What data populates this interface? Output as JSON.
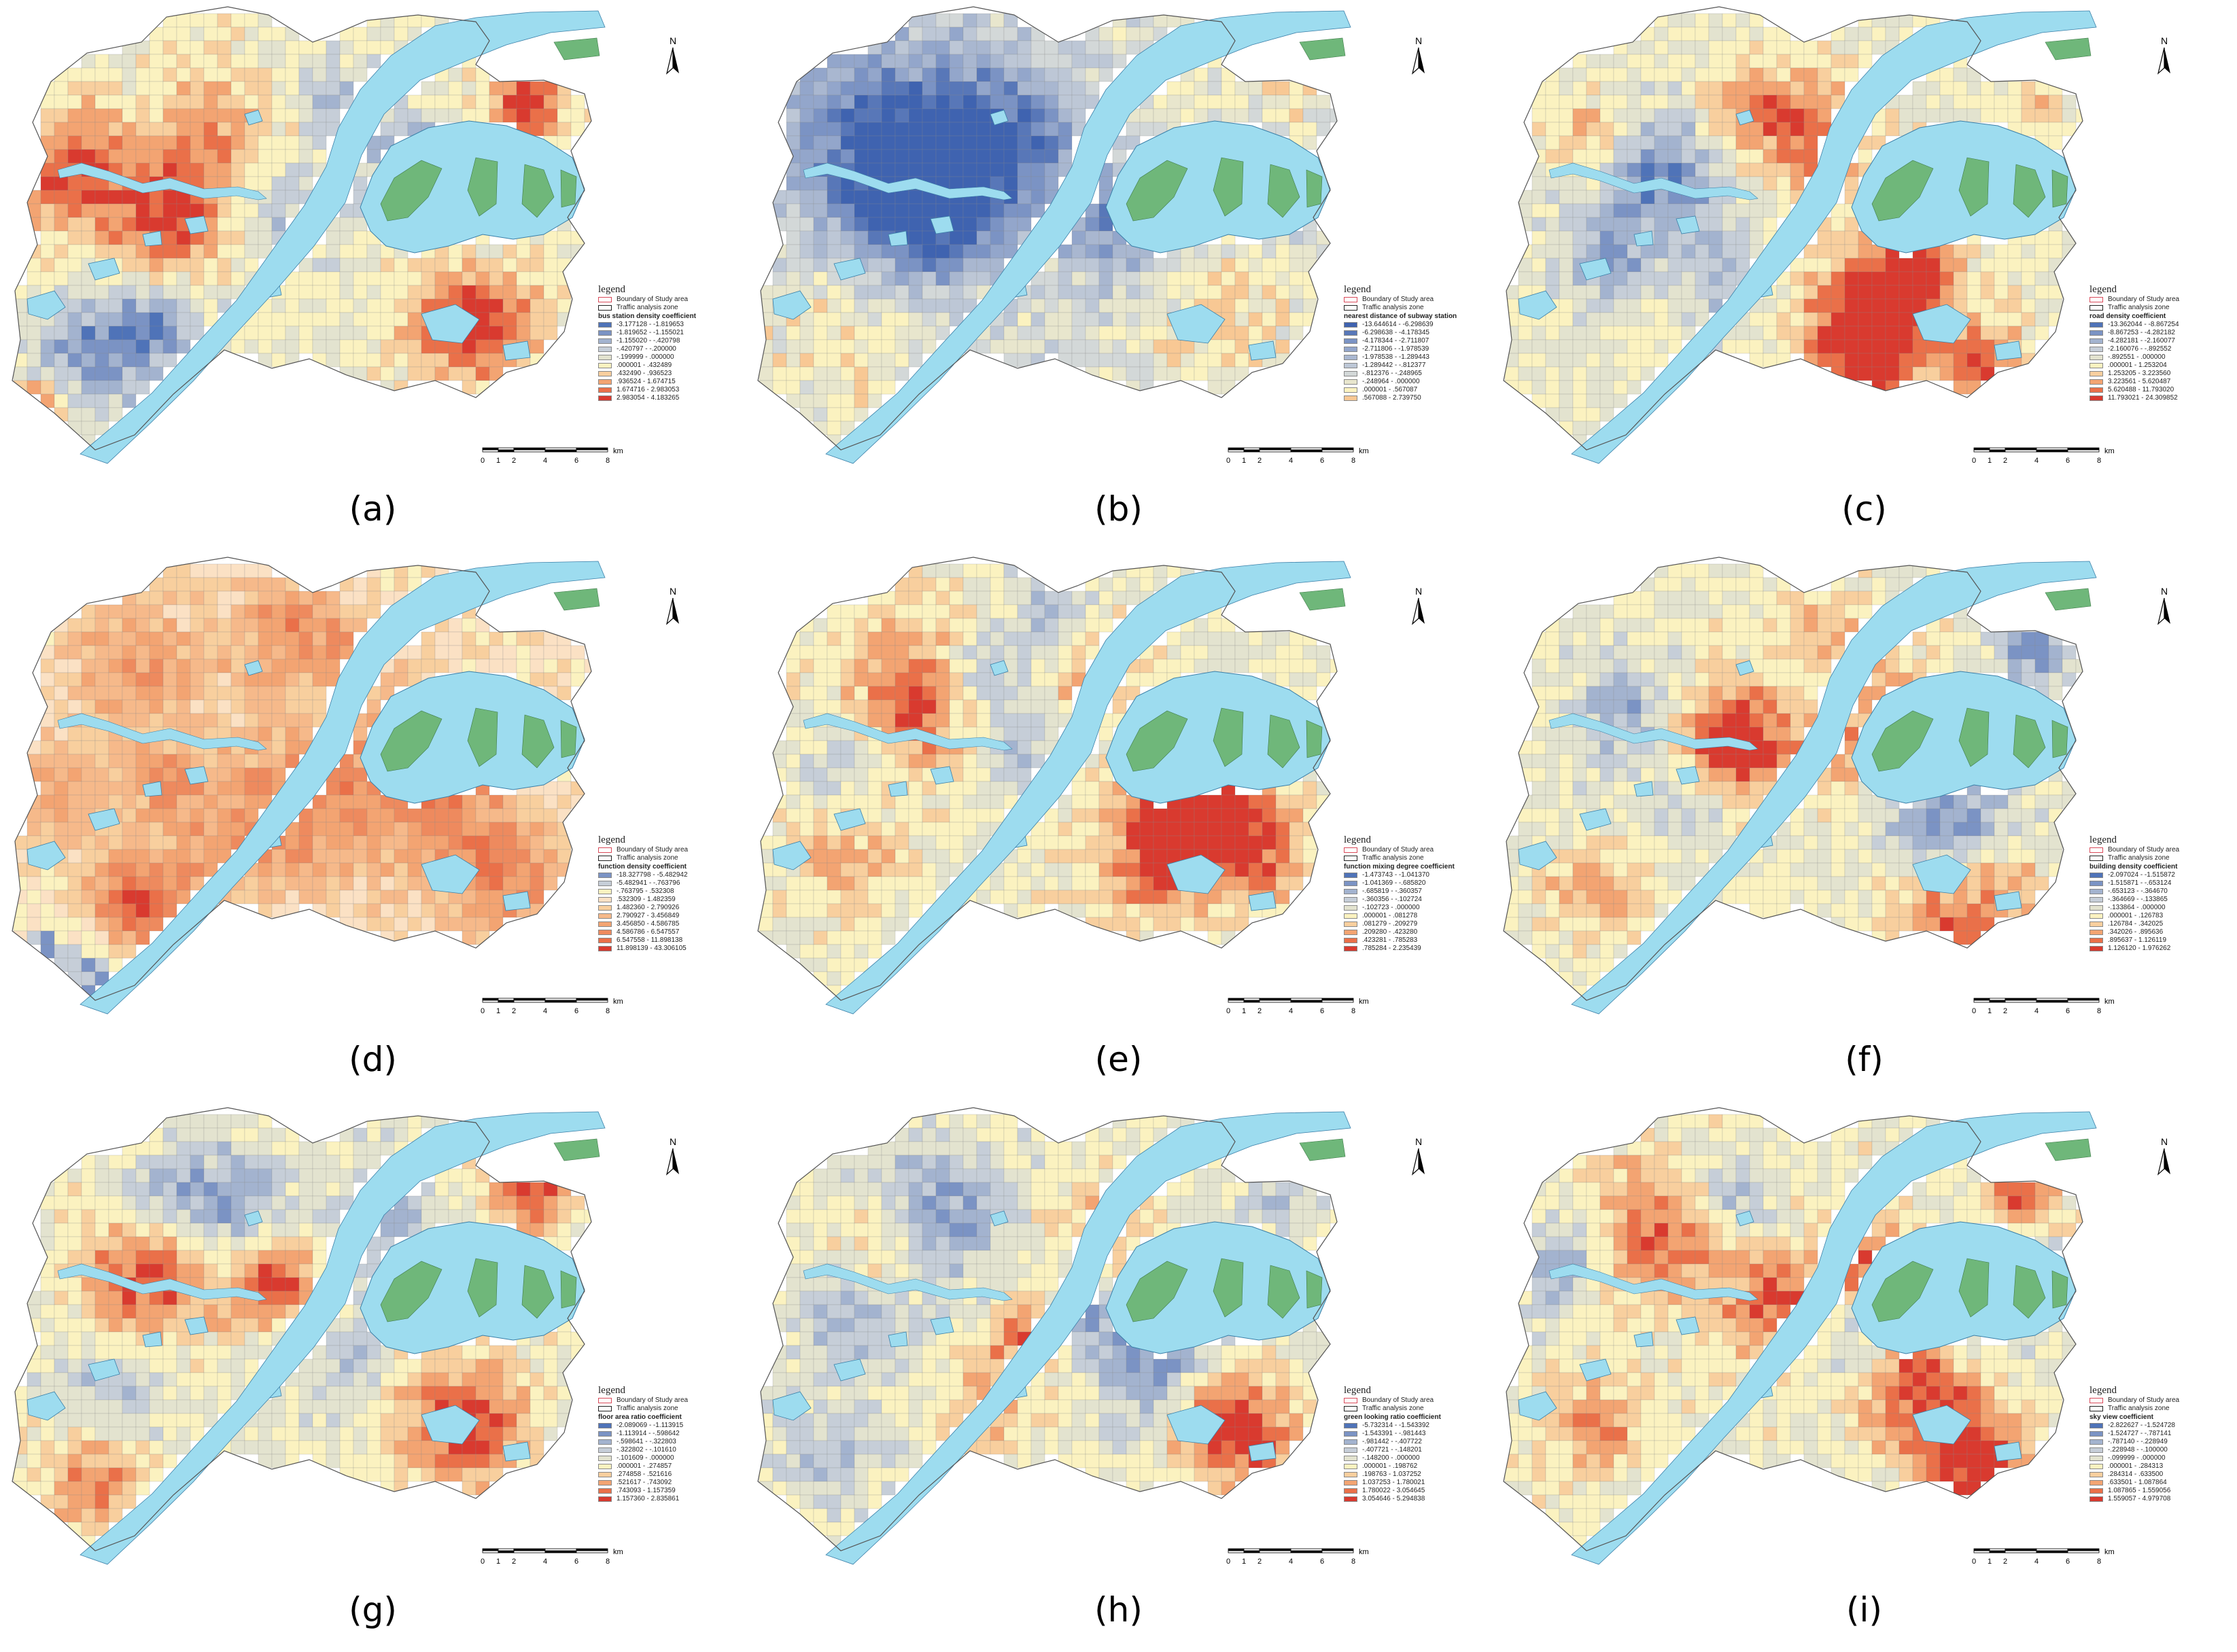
{
  "figure": {
    "legend_title": "legend",
    "boundary_label": "Boundary of Study area",
    "taz_label": "Traffic analysis zone",
    "north_label": "N",
    "scale_ticks": [
      "0",
      "1",
      "2",
      "4",
      "6",
      "8"
    ],
    "scale_unit": "km",
    "colors": {
      "blue_dark": "#4f73b8",
      "blue_mid": "#7b93c4",
      "blue_light": "#a3b3cf",
      "grey_blue": "#c6ced8",
      "pale_yellow": "#fbf2c0",
      "peach": "#f8cf9e",
      "orange_light": "#f3a472",
      "orange": "#ea7049",
      "red": "#d93a2f",
      "water": "#9ddcef",
      "greenland": "#6fb77a"
    }
  },
  "panels": [
    {
      "id": "a",
      "label": "(a)",
      "variable": "bus station density coefficient",
      "classes": [
        "-3.177128 - -1.819653",
        "-1.819652 - -1.155021",
        "-1.155020 - -.420798",
        "-.420797 - -.200000",
        "-.199999 - .000000",
        ".000001 - .432489",
        ".432490 - .936523",
        ".936524 - 1.674715",
        "1.674716 - 2.983053",
        "2.983054 - 4.183265"
      ],
      "class_colors": [
        "#4f73b8",
        "#7b93c4",
        "#a3b3cf",
        "#c6ced8",
        "#e3e3cf",
        "#fbf2c0",
        "#f8cf9e",
        "#f3a472",
        "#ea7049",
        "#d93a2f"
      ]
    },
    {
      "id": "b",
      "label": "(b)",
      "variable": "nearest distance of subway station",
      "classes": [
        "-13.644614 - -6.298639",
        "-6.298638 - -4.178345",
        "-4.178344 - -2.711807",
        "-2.711806 - -1.978539",
        "-1.978538 - -1.289443",
        "-1.289442 - -.812377",
        "-.812376 - -.248965",
        "-.248964 - .000000",
        ".000001 - .567087",
        ".567088 - 2.739750"
      ],
      "class_colors": [
        "#3f63b0",
        "#5877b8",
        "#7b93c4",
        "#93a6cb",
        "#a9b7d0",
        "#bdc7d6",
        "#d3d8d8",
        "#e8e6cd",
        "#fbf2c0",
        "#f8c894"
      ]
    },
    {
      "id": "c",
      "label": "(c)",
      "variable": "road density coefficient",
      "classes": [
        "-13.362044 - -8.867254",
        "-8.867253 - -4.282182",
        "-4.282181 - -2.160077",
        "-2.160076 - -.892552",
        "-.892551 - .000000",
        ".000001 - 1.253204",
        "1.253205 - 3.223560",
        "3.223561 - 5.620487",
        "5.620488 - 11.793020",
        "11.793021 - 24.309852"
      ],
      "class_colors": [
        "#4f73b8",
        "#7b93c4",
        "#a3b3cf",
        "#c6ced8",
        "#e3e3cf",
        "#fbf2c0",
        "#f8cf9e",
        "#f3a472",
        "#ea7049",
        "#d93a2f"
      ]
    },
    {
      "id": "d",
      "label": "(d)",
      "variable": "function density coefficient",
      "classes": [
        "-18.327798 - -5.482942",
        "-5.482941 - -.763796",
        "-.763795 - .532308",
        ".532309 - 1.482359",
        "1.482360 - 2.790926",
        "2.790927 - 3.456849",
        "3.456850 - 4.586785",
        "4.586786 - 6.547557",
        "6.547558 - 11.898138",
        "11.898139 - 43.306105"
      ],
      "class_colors": [
        "#7b93c4",
        "#c6ced8",
        "#fbf2c0",
        "#fbe1c4",
        "#f8cf9e",
        "#f6b98a",
        "#f3a472",
        "#ee8a5e",
        "#ea7049",
        "#d93a2f"
      ]
    },
    {
      "id": "e",
      "label": "(e)",
      "variable": "function mixing degree coefficient",
      "classes": [
        "-1.473743 - -1.041370",
        "-1.041369 - -.685820",
        "-.685819 - -.360357",
        "-.360356 - -.102724",
        "-.102723 - .000000",
        ".000001 - .081278",
        ".081279 - .209279",
        ".209280 - .423280",
        ".423281 - .785283",
        ".785284 - 2.235439"
      ],
      "class_colors": [
        "#4f73b8",
        "#7b93c4",
        "#a3b3cf",
        "#c6ced8",
        "#e3e3cf",
        "#fbf2c0",
        "#f8cf9e",
        "#f3a472",
        "#ea7049",
        "#d93a2f"
      ]
    },
    {
      "id": "f",
      "label": "(f)",
      "variable": "building density coefficient",
      "classes": [
        "-2.097024 - -1.515872",
        "-1.515871 - -.653124",
        "-.653123 - -.364670",
        "-.364669 - -.133865",
        "-.133864 - .000000",
        ".000001 - .126783",
        ".126784 - .342025",
        ".342026 - .895636",
        ".895637 - 1.126119",
        "1.126120 - 1.976262"
      ],
      "class_colors": [
        "#4f73b8",
        "#7b93c4",
        "#a3b3cf",
        "#c6ced8",
        "#e3e3cf",
        "#fbf2c0",
        "#f8cf9e",
        "#f3a472",
        "#ea7049",
        "#d93a2f"
      ]
    },
    {
      "id": "g",
      "label": "(g)",
      "variable": "floor area ratio coefficient",
      "classes": [
        "-2.089069 - -1.113915",
        "-1.113914 - -.598642",
        "-.598641 - -.322803",
        "-.322802 - -.101610",
        "-.101609 - .000000",
        ".000001 - .274857",
        ".274858 - .521616",
        ".521617 - .743092",
        ".743093 - 1.157359",
        "1.157360 - 2.835861"
      ],
      "class_colors": [
        "#4f73b8",
        "#7b93c4",
        "#a3b3cf",
        "#c6ced8",
        "#e3e3cf",
        "#fbf2c0",
        "#f8cf9e",
        "#f3a472",
        "#ea7049",
        "#d93a2f"
      ]
    },
    {
      "id": "h",
      "label": "(h)",
      "variable": "green looking ratio coefficient",
      "classes": [
        "-5.732314 - -1.543392",
        "-1.543391 - -.981443",
        "-.981442 - -.407722",
        "-.407721 - -.148201",
        "-.148200 - .000000",
        ".000001 - .198762",
        ".198763 - 1.037252",
        "1.037253 - 1.780021",
        "1.780022 - 3.054645",
        "3.054646 - 5.294838"
      ],
      "class_colors": [
        "#4f73b8",
        "#7b93c4",
        "#a3b3cf",
        "#c6ced8",
        "#e3e3cf",
        "#fbf2c0",
        "#f8cf9e",
        "#f3a472",
        "#ea7049",
        "#d93a2f"
      ]
    },
    {
      "id": "i",
      "label": "(i)",
      "variable": "sky view coefficient",
      "classes": [
        "-2.822627 - -1.524728",
        "-1.524727 - -.787141",
        "-.787140 - -.228949",
        "-.228948 - -.100000",
        "-.099999 - .000000",
        ".000001 - .284313",
        ".284314 - .633500",
        ".633501 - 1.087864",
        "1.087865 - 1.559056",
        "1.559057 - 4.979708"
      ],
      "class_colors": [
        "#4f73b8",
        "#7b93c4",
        "#a3b3cf",
        "#c6ced8",
        "#e3e3cf",
        "#fbf2c0",
        "#f8cf9e",
        "#f3a472",
        "#ea7049",
        "#d93a2f"
      ]
    }
  ]
}
